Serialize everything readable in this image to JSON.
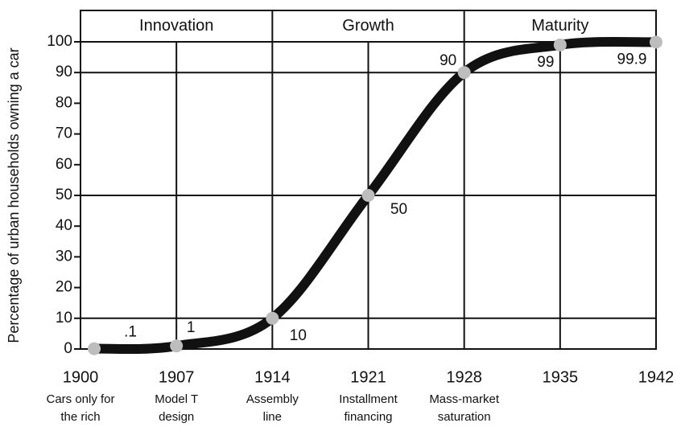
{
  "chart_data": {
    "type": "line",
    "ylabel": "Percentage of urban households owning a car",
    "x": [
      1901,
      1907,
      1914,
      1921,
      1928,
      1935,
      1942
    ],
    "series": [
      {
        "color": "#111111",
        "marker_color": "#bdbdbd",
        "values": [
          0.1,
          1,
          10,
          50,
          90,
          99,
          99.9
        ],
        "value_labels": [
          ".1",
          "1",
          "10",
          "50",
          "90",
          "99",
          "99.9"
        ]
      }
    ],
    "xlim": [
      1900,
      1942
    ],
    "xticks": [
      1900,
      1907,
      1914,
      1921,
      1928,
      1935,
      1942
    ],
    "ylim": [
      0,
      100
    ],
    "yticks": [
      0,
      10,
      20,
      30,
      40,
      50,
      60,
      70,
      80,
      90,
      100
    ],
    "grid_y": [
      10,
      50,
      90
    ],
    "phases": [
      {
        "label": "Innovation",
        "start": 1900,
        "end": 1914
      },
      {
        "label": "Growth",
        "start": 1914,
        "end": 1928
      },
      {
        "label": "Maturity",
        "start": 1928,
        "end": 1942
      }
    ],
    "milestones": [
      {
        "x": 1900,
        "lines": [
          "Cars only for",
          "the rich"
        ]
      },
      {
        "x": 1907,
        "lines": [
          "Model T",
          "design"
        ]
      },
      {
        "x": 1914,
        "lines": [
          "Assembly",
          "line"
        ]
      },
      {
        "x": 1921,
        "lines": [
          "Installment",
          "financing"
        ]
      },
      {
        "x": 1928,
        "lines": [
          "Mass-market",
          "saturation"
        ]
      }
    ]
  }
}
